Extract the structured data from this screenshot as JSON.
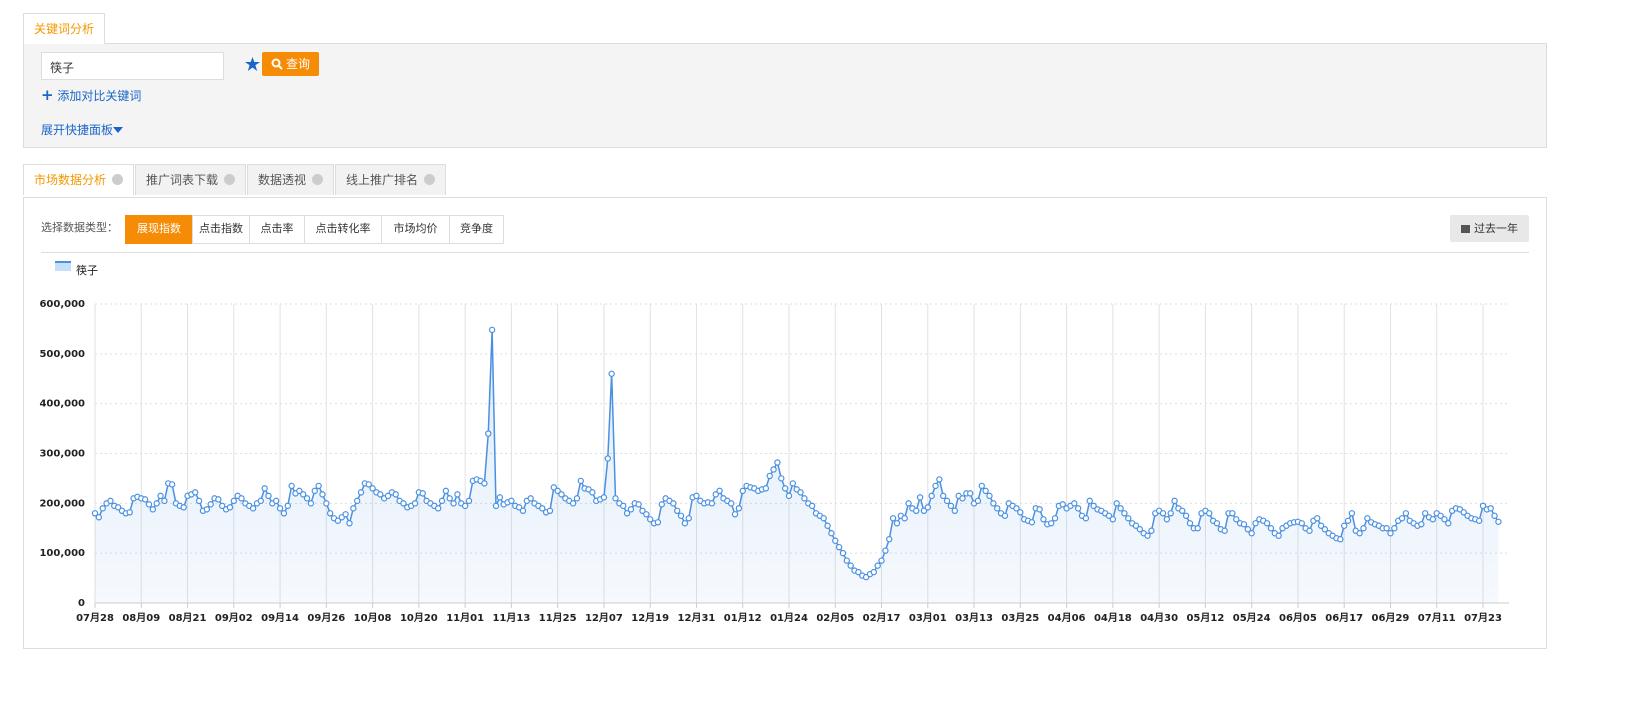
{
  "header_tab": "关键词分析",
  "search": {
    "keyword": "筷子",
    "button": "查询",
    "add_compare": "添加对比关键词",
    "expand_panel": "展开快捷面板"
  },
  "tabs": [
    "市场数据分析",
    "推广词表下载",
    "数据透视",
    "线上推广排名"
  ],
  "data_type": {
    "label": "选择数据类型：",
    "options": [
      "展现指数",
      "点击指数",
      "点击率",
      "点击转化率",
      "市场均价",
      "竞争度"
    ]
  },
  "range_button": "过去一年",
  "chart_data": {
    "type": "line",
    "grid": true,
    "fill": true,
    "ylim": [
      0,
      600000
    ],
    "yticks": [
      0,
      {
        "value": 100000,
        "label": "100,000"
      },
      {
        "value": 200000,
        "label": "200,000"
      },
      {
        "value": 300000,
        "label": "300,000"
      },
      {
        "value": 400000,
        "label": "400,000"
      },
      {
        "value": 500000,
        "label": "500,000"
      },
      {
        "value": 600000,
        "label": "600,000"
      }
    ],
    "categories": [
      "07月28",
      null,
      null,
      null,
      null,
      null,
      null,
      null,
      null,
      null,
      null,
      null,
      "08月09",
      null,
      null,
      null,
      null,
      null,
      null,
      null,
      null,
      null,
      null,
      null,
      "08月21",
      null,
      null,
      null,
      null,
      null,
      null,
      null,
      null,
      null,
      null,
      null,
      "09月02",
      null,
      null,
      null,
      null,
      null,
      null,
      null,
      null,
      null,
      null,
      null,
      "09月14",
      null,
      null,
      null,
      null,
      null,
      null,
      null,
      null,
      null,
      null,
      null,
      "09月26",
      null,
      null,
      null,
      null,
      null,
      null,
      null,
      null,
      null,
      null,
      null,
      "10月08",
      null,
      null,
      null,
      null,
      null,
      null,
      null,
      null,
      null,
      null,
      null,
      "10月20",
      null,
      null,
      null,
      null,
      null,
      null,
      null,
      null,
      null,
      null,
      null,
      "11月01",
      null,
      null,
      null,
      null,
      null,
      null,
      null,
      null,
      null,
      null,
      null,
      "11月13",
      null,
      null,
      null,
      null,
      null,
      null,
      null,
      null,
      null,
      null,
      null,
      "11月25",
      null,
      null,
      null,
      null,
      null,
      null,
      null,
      null,
      null,
      null,
      null,
      "12月07",
      null,
      null,
      null,
      null,
      null,
      null,
      null,
      null,
      null,
      null,
      null,
      "12月19",
      null,
      null,
      null,
      null,
      null,
      null,
      null,
      null,
      null,
      null,
      null,
      "12月31",
      null,
      null,
      null,
      null,
      null,
      null,
      null,
      null,
      null,
      null,
      null,
      "01月12",
      null,
      null,
      null,
      null,
      null,
      null,
      null,
      null,
      null,
      null,
      null,
      "01月24",
      null,
      null,
      null,
      null,
      null,
      null,
      null,
      null,
      null,
      null,
      null,
      "02月05",
      null,
      null,
      null,
      null,
      null,
      null,
      null,
      null,
      null,
      null,
      null,
      "02月17",
      null,
      null,
      null,
      null,
      null,
      null,
      null,
      null,
      null,
      null,
      null,
      "03月01",
      null,
      null,
      null,
      null,
      null,
      null,
      null,
      null,
      null,
      null,
      null,
      "03月13",
      null,
      null,
      null,
      null,
      null,
      null,
      null,
      null,
      null,
      null,
      null,
      "03月25",
      null,
      null,
      null,
      null,
      null,
      null,
      null,
      null,
      null,
      null,
      null,
      "04月06",
      null,
      null,
      null,
      null,
      null,
      null,
      null,
      null,
      null,
      null,
      null,
      "04月18",
      null,
      null,
      null,
      null,
      null,
      null,
      null,
      null,
      null,
      null,
      null,
      "04月30",
      null,
      null,
      null,
      null,
      null,
      null,
      null,
      null,
      null,
      null,
      null,
      "05月12",
      null,
      null,
      null,
      null,
      null,
      null,
      null,
      null,
      null,
      null,
      null,
      "05月24",
      null,
      null,
      null,
      null,
      null,
      null,
      null,
      null,
      null,
      null,
      null,
      "06月05",
      null,
      null,
      null,
      null,
      null,
      null,
      null,
      null,
      null,
      null,
      null,
      "06月17",
      null,
      null,
      null,
      null,
      null,
      null,
      null,
      null,
      null,
      null,
      null,
      "06月29",
      null,
      null,
      null,
      null,
      null,
      null,
      null,
      null,
      null,
      null,
      null,
      "07月11",
      null,
      null,
      null,
      null,
      null,
      null,
      null,
      null,
      null,
      null,
      null,
      "07月23",
      null,
      null,
      null,
      null
    ],
    "series": [
      {
        "name": "筷子",
        "color": "#4a90e2",
        "values": [
          180000,
          172000,
          190000,
          200000,
          205000,
          195000,
          192000,
          185000,
          180000,
          182000,
          210000,
          213000,
          210000,
          208000,
          198000,
          188000,
          200000,
          215000,
          205000,
          240000,
          238000,
          200000,
          195000,
          192000,
          215000,
          218000,
          222000,
          205000,
          185000,
          188000,
          198000,
          210000,
          208000,
          195000,
          188000,
          192000,
          205000,
          215000,
          210000,
          200000,
          195000,
          190000,
          200000,
          205000,
          230000,
          215000,
          200000,
          205000,
          190000,
          180000,
          195000,
          235000,
          220000,
          225000,
          218000,
          210000,
          200000,
          225000,
          235000,
          218000,
          200000,
          180000,
          170000,
          165000,
          172000,
          178000,
          160000,
          190000,
          205000,
          222000,
          240000,
          238000,
          230000,
          222000,
          218000,
          210000,
          215000,
          222000,
          218000,
          205000,
          200000,
          192000,
          195000,
          200000,
          222000,
          220000,
          205000,
          200000,
          195000,
          190000,
          205000,
          225000,
          210000,
          200000,
          218000,
          200000,
          195000,
          205000,
          245000,
          248000,
          245000,
          240000,
          340000,
          548000,
          195000,
          212000,
          198000,
          202000,
          205000,
          195000,
          192000,
          185000,
          205000,
          210000,
          200000,
          195000,
          190000,
          182000,
          185000,
          232000,
          225000,
          218000,
          210000,
          205000,
          200000,
          210000,
          245000,
          230000,
          228000,
          222000,
          205000,
          208000,
          212000,
          290000,
          460000,
          210000,
          200000,
          195000,
          180000,
          188000,
          200000,
          198000,
          185000,
          178000,
          168000,
          160000,
          162000,
          198000,
          210000,
          205000,
          200000,
          185000,
          175000,
          160000,
          170000,
          212000,
          215000,
          205000,
          200000,
          202000,
          200000,
          218000,
          225000,
          210000,
          205000,
          200000,
          178000,
          190000,
          225000,
          235000,
          232000,
          230000,
          225000,
          228000,
          230000,
          255000,
          268000,
          282000,
          250000,
          230000,
          215000,
          240000,
          228000,
          222000,
          210000,
          200000,
          195000,
          180000,
          175000,
          170000,
          155000,
          140000,
          125000,
          112000,
          100000,
          85000,
          75000,
          65000,
          62000,
          55000,
          52000,
          58000,
          62000,
          75000,
          85000,
          105000,
          128000,
          170000,
          160000,
          175000,
          170000,
          200000,
          190000,
          185000,
          212000,
          185000,
          192000,
          215000,
          235000,
          248000,
          215000,
          205000,
          195000,
          185000,
          215000,
          210000,
          220000,
          220000,
          200000,
          205000,
          235000,
          225000,
          215000,
          200000,
          190000,
          180000,
          175000,
          200000,
          195000,
          190000,
          182000,
          168000,
          165000,
          162000,
          190000,
          188000,
          168000,
          158000,
          160000,
          170000,
          195000,
          198000,
          190000,
          195000,
          200000,
          190000,
          175000,
          170000,
          205000,
          195000,
          188000,
          185000,
          180000,
          175000,
          168000,
          200000,
          190000,
          180000,
          170000,
          160000,
          155000,
          148000,
          140000,
          135000,
          145000,
          180000,
          185000,
          180000,
          168000,
          180000,
          205000,
          190000,
          185000,
          175000,
          160000,
          150000,
          150000,
          180000,
          185000,
          180000,
          165000,
          160000,
          148000,
          145000,
          180000,
          180000,
          168000,
          160000,
          158000,
          148000,
          140000,
          160000,
          168000,
          165000,
          160000,
          150000,
          140000,
          135000,
          150000,
          155000,
          160000,
          162000,
          163000,
          160000,
          150000,
          145000,
          165000,
          170000,
          155000,
          148000,
          140000,
          135000,
          130000,
          128000,
          155000,
          165000,
          180000,
          145000,
          140000,
          150000,
          170000,
          162000,
          158000,
          155000,
          150000,
          150000,
          140000,
          150000,
          165000,
          170000,
          180000,
          165000,
          160000,
          155000,
          158000,
          180000,
          172000,
          168000,
          180000,
          175000,
          168000,
          160000,
          185000,
          190000,
          188000,
          182000,
          175000,
          170000,
          168000,
          165000,
          195000,
          188000,
          190000,
          175000,
          163000
        ]
      }
    ]
  }
}
